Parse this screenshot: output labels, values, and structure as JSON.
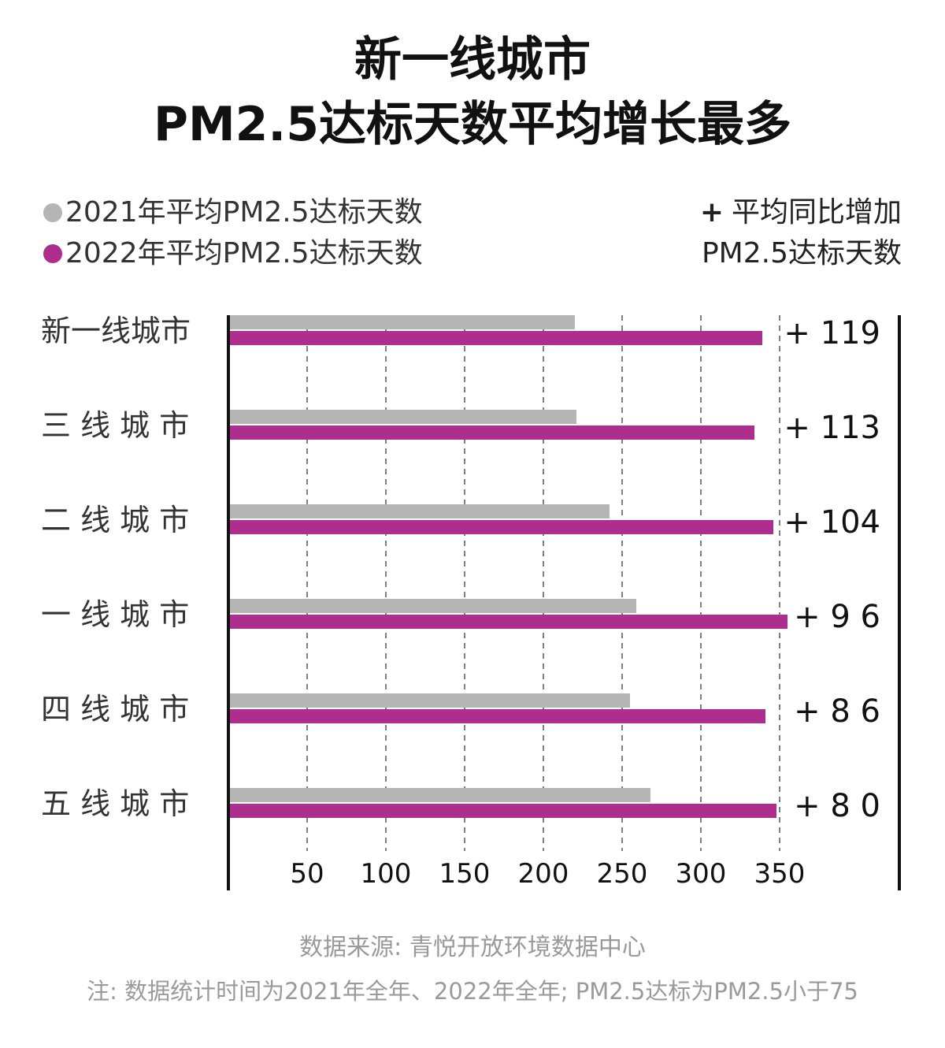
{
  "title_line1": "新一线城市",
  "title_line2": "PM2.5达标天数平均增长最多",
  "legend": {
    "series2021": "2021年平均PM2.5达标天数",
    "series2022": "2022年平均PM2.5达标天数",
    "right_plus": "+",
    "right_line1": "平均同比增加",
    "right_line2": "PM2.5达标天数"
  },
  "colors": {
    "gray": "#b5b5b5",
    "magenta": "#ad2e8c",
    "axis": "#111111",
    "grid": "#555555"
  },
  "chart_data": {
    "type": "bar",
    "orientation": "horizontal",
    "categories": [
      "新一线城市",
      "三线城市",
      "二线城市",
      "一线城市",
      "四线城市",
      "五线城市"
    ],
    "category_labels": [
      "新一线城市",
      "三 线 城 市",
      "二 线 城 市",
      "一 线 城 市",
      "四 线 城 市",
      "五 线 城 市"
    ],
    "series": [
      {
        "name": "2021年平均PM2.5达标天数",
        "values": [
          220,
          221,
          242,
          259,
          255,
          268
        ]
      },
      {
        "name": "2022年平均PM2.5达标天数",
        "values": [
          339,
          334,
          346,
          355,
          341,
          348
        ]
      }
    ],
    "increase_labels": [
      "+ 119",
      "+ 113",
      "+ 104",
      "+ 9 6",
      "+ 8 6",
      "+ 8 0"
    ],
    "xticks": [
      "50",
      "100",
      "150",
      "200",
      "250",
      "300",
      "350"
    ],
    "xlim": [
      0,
      360
    ],
    "grid": "vertical dashed"
  },
  "footer": {
    "source": "数据来源: 青悦开放环境数据中心",
    "note": "注: 数据统计时间为2021年全年、2022年全年; PM2.5达标为PM2.5小于75"
  }
}
